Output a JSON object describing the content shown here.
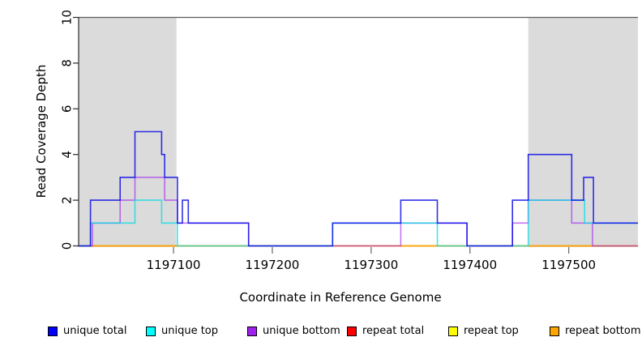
{
  "chart_data": {
    "type": "line",
    "subtype": "step-coverage",
    "title": "",
    "xlabel": "Coordinate in Reference Genome",
    "ylabel": "Read Coverage Depth",
    "xlim": [
      1197004,
      1197570
    ],
    "ylim": [
      0,
      10
    ],
    "grid": false,
    "xticks": {
      "values": [
        1197100,
        1197200,
        1197300,
        1197400,
        1197500
      ],
      "labels": [
        "1197100",
        "1197200",
        "1197300",
        "1197400",
        "1197500"
      ]
    },
    "yticks": {
      "values": [
        0,
        2,
        4,
        6,
        8,
        10
      ],
      "labels": [
        "0",
        "2",
        "4",
        "6",
        "8",
        "10"
      ]
    },
    "shade_color": "#dbdbdb",
    "border_color": "#5a5a5a",
    "axis_color": "#2a2a2a",
    "shaded_regions": [
      {
        "x0": 1197004,
        "x1": 1197103
      },
      {
        "x0": 1197459,
        "x1": 1197570
      }
    ],
    "series": [
      {
        "name": "repeat total",
        "color": "#ee0000",
        "opacity": 0.9,
        "start_value": 0,
        "steps": []
      },
      {
        "name": "repeat top",
        "color": "#ffe800",
        "opacity": 0.9,
        "start_value": 0,
        "steps": []
      },
      {
        "name": "repeat bottom",
        "color": "#ff9f00",
        "opacity": 0.95,
        "start_value": 0,
        "steps": []
      },
      {
        "name": "unique bottom",
        "color": "#a020f0",
        "opacity": 0.62,
        "start_value": 0,
        "steps": [
          [
            1197018,
            1
          ],
          [
            1197046,
            2
          ],
          [
            1197061,
            3
          ],
          [
            1197091,
            2
          ],
          [
            1197104,
            1
          ],
          [
            1197176,
            0
          ],
          [
            1197330,
            1
          ],
          [
            1197397,
            0
          ],
          [
            1197443,
            1
          ],
          [
            1197459,
            2
          ],
          [
            1197503,
            1
          ],
          [
            1197524,
            0
          ]
        ]
      },
      {
        "name": "unique top",
        "color": "#00dde4",
        "opacity": 0.75,
        "start_value": 0,
        "steps": [
          [
            1197016,
            1
          ],
          [
            1197061,
            2
          ],
          [
            1197088,
            1
          ],
          [
            1197104,
            0
          ],
          [
            1197261,
            1
          ],
          [
            1197367,
            0
          ],
          [
            1197459,
            2
          ],
          [
            1197516,
            1
          ]
        ]
      },
      {
        "name": "unique total",
        "color": "#0d0de8",
        "opacity": 0.85,
        "start_value": 0,
        "steps": [
          [
            1197016,
            2
          ],
          [
            1197046,
            3
          ],
          [
            1197061,
            5
          ],
          [
            1197088,
            4
          ],
          [
            1197091,
            3
          ],
          [
            1197104,
            1
          ],
          [
            1197109,
            2
          ],
          [
            1197115,
            1
          ],
          [
            1197176,
            0
          ],
          [
            1197261,
            1
          ],
          [
            1197330,
            2
          ],
          [
            1197367,
            1
          ],
          [
            1197397,
            0
          ],
          [
            1197443,
            2
          ],
          [
            1197459,
            4
          ],
          [
            1197503,
            2
          ],
          [
            1197515,
            3
          ],
          [
            1197525,
            1
          ]
        ]
      }
    ],
    "legend": [
      {
        "label": "unique total",
        "color": "#0000ff"
      },
      {
        "label": "unique top",
        "color": "#00ffff"
      },
      {
        "label": "unique bottom",
        "color": "#a020f0"
      },
      {
        "label": "repeat total",
        "color": "#ff0000"
      },
      {
        "label": "repeat top",
        "color": "#ffff00"
      },
      {
        "label": "repeat bottom",
        "color": "#ffa500"
      }
    ],
    "legend_position": "bottom"
  }
}
